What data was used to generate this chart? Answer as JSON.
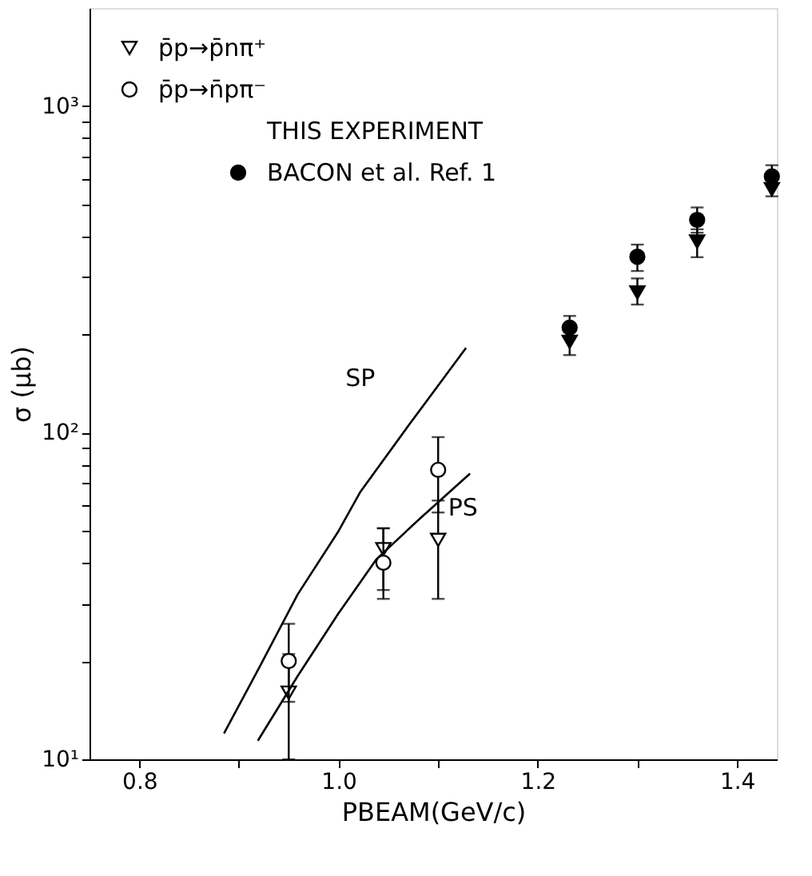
{
  "chart_data": {
    "type": "scatter",
    "xlabel": "PBEAM(GeV/c)",
    "ylabel": "σ (μb)",
    "log": "y",
    "grid": false,
    "legend": "top left",
    "xlim": [
      0.75,
      1.44
    ],
    "xticks": [
      {
        "value": 0.8,
        "label": "0.8"
      },
      {
        "value": 0.9,
        "label": null
      },
      {
        "value": 1.0,
        "label": "1.0"
      },
      {
        "value": 1.1,
        "label": null
      },
      {
        "value": 1.2,
        "label": "1.2"
      },
      {
        "value": 1.3,
        "label": null
      },
      {
        "value": 1.4,
        "label": "1.4"
      }
    ],
    "ylim": [
      10,
      2000
    ],
    "yticks": [
      {
        "value": 10,
        "label": "10¹"
      },
      {
        "value": 20,
        "label": null
      },
      {
        "value": 30,
        "label": null
      },
      {
        "value": 40,
        "label": null
      },
      {
        "value": 50,
        "label": null
      },
      {
        "value": 60,
        "label": null
      },
      {
        "value": 70,
        "label": null
      },
      {
        "value": 80,
        "label": null
      },
      {
        "value": 90,
        "label": null
      },
      {
        "value": 100,
        "label": "10²"
      },
      {
        "value": 200,
        "label": null
      },
      {
        "value": 300,
        "label": null
      },
      {
        "value": 400,
        "label": null
      },
      {
        "value": 500,
        "label": null
      },
      {
        "value": 600,
        "label": null
      },
      {
        "value": 700,
        "label": null
      },
      {
        "value": 800,
        "label": null
      },
      {
        "value": 900,
        "label": null
      },
      {
        "value": 1000,
        "label": "10³"
      }
    ],
    "annotations": [
      "THIS EXPERIMENT"
    ],
    "series": [
      {
        "name": "p̄p→p̄nπ⁺",
        "marker": "triangle",
        "color": "#ffffff",
        "x": [
          0.95,
          1.045,
          1.1
        ],
        "values": [
          16,
          44,
          47
        ],
        "errors": [
          [
            10,
            21
          ],
          [
            33,
            51
          ],
          [
            31,
            62
          ]
        ]
      },
      {
        "name": "p̄p→n̄pπ⁻",
        "marker": "circle",
        "color": "#ffffff",
        "x": [
          0.95,
          1.045,
          1.1
        ],
        "values": [
          20,
          40,
          77
        ],
        "errors": [
          [
            15,
            26
          ],
          [
            31,
            51
          ],
          [
            57,
            97
          ]
        ]
      },
      {
        "name": "BACON et al. Ref. 1",
        "marker": "circle",
        "color": "#000000",
        "x": [
          1.232,
          1.3,
          1.36,
          1.435
        ],
        "values": [
          210,
          346,
          449,
          610
        ],
        "errors": [
          [
            173,
            228
          ],
          [
            313,
            377
          ],
          [
            410,
            490
          ],
          [
            530,
            660
          ]
        ]
      },
      {
        "marker": "triangle",
        "color": "#000000",
        "x": [
          1.232,
          1.3,
          1.36,
          1.435
        ],
        "values": [
          190,
          269,
          385,
          557
        ],
        "errors": [
          null,
          [
            247,
            297
          ],
          [
            345,
            420
          ],
          null
        ]
      },
      {
        "name": "SP",
        "type": "line",
        "marker": "none",
        "line_style": "solid",
        "color": "#000000",
        "x": [
          0.885,
          0.92,
          0.959,
          1.0,
          1.022,
          1.07,
          1.128
        ],
        "values": [
          12,
          19,
          32,
          50,
          66,
          105,
          182
        ]
      },
      {
        "name": "PS",
        "type": "line",
        "marker": "none",
        "line_style": "solid",
        "color": "#000000",
        "x": [
          0.919,
          0.959,
          1.0,
          1.038,
          1.08,
          1.132
        ],
        "values": [
          11.4,
          18,
          28,
          41,
          54,
          75
        ]
      }
    ]
  }
}
